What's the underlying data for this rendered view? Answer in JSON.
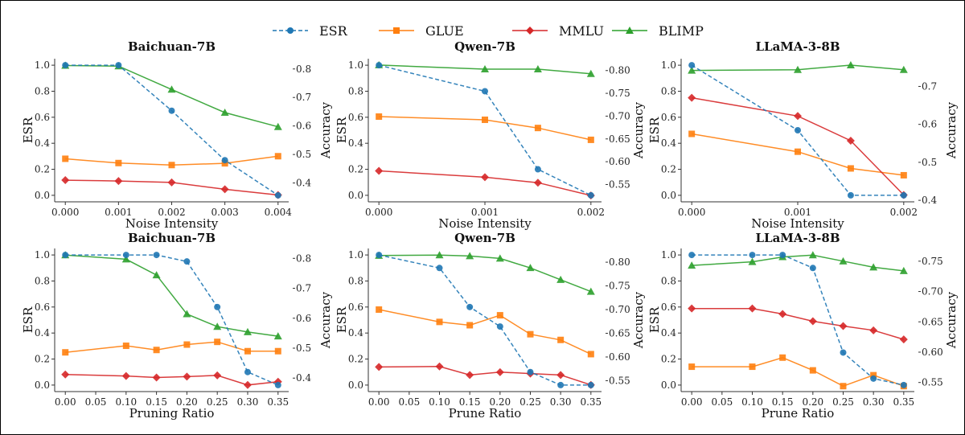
{
  "legend": {
    "placement": "top-center",
    "items": [
      {
        "name": "ESR",
        "color": "#1f77b4",
        "marker": "circle",
        "linestyle": "dashed"
      },
      {
        "name": "GLUE",
        "color": "#ff7f0e",
        "marker": "square",
        "linestyle": "solid"
      },
      {
        "name": "MMLU",
        "color": "#d62728",
        "marker": "diamond",
        "linestyle": "solid"
      },
      {
        "name": "BLIMP",
        "color": "#2ca02c",
        "marker": "triangle",
        "linestyle": "solid"
      }
    ]
  },
  "chart_data": [
    {
      "type": "line",
      "title": "Baichuan-7B",
      "xlabel": "Noise Intensity",
      "ylabel": "ESR",
      "y2label": "Accuracy",
      "x": [
        0.0,
        0.001,
        0.002,
        0.003,
        0.004
      ],
      "xticks": [
        "0.000",
        "0.001",
        "0.002",
        "0.003",
        "0.004"
      ],
      "xlim": [
        -0.0002,
        0.0042
      ],
      "yticks": [
        "0.0",
        "0.2",
        "0.4",
        "0.6",
        "0.8",
        "1.0"
      ],
      "ylim": [
        -0.05,
        1.05
      ],
      "y2ticks": [
        "0.4",
        "0.5",
        "0.6",
        "0.7",
        "0.8"
      ],
      "y2lim": [
        0.334,
        0.836
      ],
      "series": [
        {
          "name": "ESR",
          "axis": "left",
          "values": [
            1.0,
            1.0,
            0.65,
            0.27,
            0.0
          ]
        },
        {
          "name": "GLUE",
          "axis": "right",
          "values": [
            0.485,
            0.47,
            0.463,
            0.469,
            0.494
          ]
        },
        {
          "name": "MMLU",
          "axis": "right",
          "values": [
            0.41,
            0.407,
            0.402,
            0.378,
            0.358
          ]
        },
        {
          "name": "BLIMP",
          "axis": "right",
          "values": [
            0.812,
            0.81,
            0.728,
            0.647,
            0.597
          ]
        }
      ]
    },
    {
      "type": "line",
      "title": "Qwen-7B",
      "xlabel": "Noise Intensity",
      "ylabel": "ESR",
      "y2label": "Accuracy",
      "x": [
        0.0,
        0.001,
        0.0015,
        0.002
      ],
      "xticks": [
        "0.000",
        "0.001",
        "0.002"
      ],
      "xlim": [
        -0.0001,
        0.0021
      ],
      "yticks": [
        "0.0",
        "0.2",
        "0.4",
        "0.6",
        "0.8",
        "1.0"
      ],
      "ylim": [
        -0.05,
        1.05
      ],
      "y2ticks": [
        "0.55",
        "0.60",
        "0.65",
        "0.70",
        "0.75",
        "0.80"
      ],
      "y2lim": [
        0.512,
        0.826
      ],
      "series": [
        {
          "name": "ESR",
          "axis": "left",
          "values": [
            1.0,
            0.8,
            0.2,
            0.0
          ]
        },
        {
          "name": "GLUE",
          "axis": "right",
          "values": [
            0.699,
            0.692,
            0.674,
            0.648
          ]
        },
        {
          "name": "MMLU",
          "axis": "right",
          "values": [
            0.58,
            0.566,
            0.554,
            0.526
          ]
        },
        {
          "name": "BLIMP",
          "axis": "right",
          "values": [
            0.812,
            0.803,
            0.803,
            0.793
          ]
        }
      ]
    },
    {
      "type": "line",
      "title": "LLaMA-3-8B",
      "xlabel": "Noise Intensity",
      "ylabel": "ESR",
      "y2label": "Accuracy",
      "x": [
        0.0,
        0.001,
        0.0015,
        0.002
      ],
      "xticks": [
        "0.000",
        "0.001",
        "0.002"
      ],
      "xlim": [
        -0.0001,
        0.0021
      ],
      "yticks": [
        "0.0",
        "0.2",
        "0.4",
        "0.6",
        "0.8",
        "1.0"
      ],
      "ylim": [
        -0.05,
        1.05
      ],
      "y2ticks": [
        "0.4",
        "0.5",
        "0.6",
        "0.7"
      ],
      "y2lim": [
        0.396,
        0.773
      ],
      "series": [
        {
          "name": "ESR",
          "axis": "left",
          "values": [
            1.0,
            0.5,
            0.0,
            0.0
          ]
        },
        {
          "name": "GLUE",
          "axis": "right",
          "values": [
            0.575,
            0.528,
            0.484,
            0.466
          ]
        },
        {
          "name": "MMLU",
          "axis": "right",
          "values": [
            0.67,
            0.622,
            0.557,
            0.414
          ]
        },
        {
          "name": "BLIMP",
          "axis": "right",
          "values": [
            0.742,
            0.744,
            0.756,
            0.744
          ]
        }
      ]
    },
    {
      "type": "line",
      "title": "Baichuan-7B",
      "xlabel": "Pruning Ratio",
      "ylabel": "ESR",
      "y2label": "Accuracy",
      "x": [
        0.0,
        0.1,
        0.15,
        0.2,
        0.25,
        0.3,
        0.35
      ],
      "xticks": [
        "0.00",
        "0.05",
        "0.10",
        "0.15",
        "0.20",
        "0.25",
        "0.30",
        "0.35"
      ],
      "xlim": [
        -0.0175,
        0.3675
      ],
      "yticks": [
        "0.0",
        "0.2",
        "0.4",
        "0.6",
        "0.8",
        "1.0"
      ],
      "ylim": [
        -0.05,
        1.05
      ],
      "y2ticks": [
        "0.4",
        "0.5",
        "0.6",
        "0.7",
        "0.8"
      ],
      "y2lim": [
        0.355,
        0.833
      ],
      "series": [
        {
          "name": "ESR",
          "axis": "left",
          "values": [
            1.0,
            1.0,
            1.0,
            0.95,
            0.6,
            0.1,
            0.0
          ]
        },
        {
          "name": "GLUE",
          "axis": "right",
          "values": [
            0.486,
            0.508,
            0.494,
            0.512,
            0.521,
            0.49,
            0.49
          ]
        },
        {
          "name": "MMLU",
          "axis": "right",
          "values": [
            0.412,
            0.407,
            0.402,
            0.405,
            0.409,
            0.377,
            0.388
          ]
        },
        {
          "name": "BLIMP",
          "axis": "right",
          "values": [
            0.811,
            0.797,
            0.744,
            0.614,
            0.572,
            0.554,
            0.54
          ]
        }
      ]
    },
    {
      "type": "line",
      "title": "Qwen-7B",
      "xlabel": "Prune Ratio",
      "ylabel": "ESR",
      "y2label": "Accuracy",
      "x": [
        0.0,
        0.1,
        0.15,
        0.2,
        0.25,
        0.3,
        0.35
      ],
      "xticks": [
        "0.00",
        "0.05",
        "0.10",
        "0.15",
        "0.20",
        "0.25",
        "0.30",
        "0.35"
      ],
      "xlim": [
        -0.0175,
        0.3675
      ],
      "yticks": [
        "0.0",
        "0.2",
        "0.4",
        "0.6",
        "0.8",
        "1.0"
      ],
      "ylim": [
        -0.05,
        1.05
      ],
      "y2ticks": [
        "0.55",
        "0.60",
        "0.65",
        "0.70",
        "0.75",
        "0.80"
      ],
      "y2lim": [
        0.527,
        0.829
      ],
      "series": [
        {
          "name": "ESR",
          "axis": "left",
          "values": [
            1.0,
            0.9,
            0.6,
            0.45,
            0.1,
            0.0,
            0.0
          ]
        },
        {
          "name": "GLUE",
          "axis": "right",
          "values": [
            0.7,
            0.674,
            0.667,
            0.688,
            0.648,
            0.636,
            0.606
          ]
        },
        {
          "name": "MMLU",
          "axis": "right",
          "values": [
            0.579,
            0.58,
            0.562,
            0.568,
            0.565,
            0.562,
            0.541
          ]
        },
        {
          "name": "BLIMP",
          "axis": "right",
          "values": [
            0.814,
            0.815,
            0.813,
            0.808,
            0.788,
            0.763,
            0.738
          ]
        }
      ]
    },
    {
      "type": "line",
      "title": "LLaMA-3-8B",
      "xlabel": "Prune Ratio",
      "ylabel": "ESR",
      "y2label": "Accuracy",
      "x": [
        0.0,
        0.1,
        0.15,
        0.2,
        0.25,
        0.3,
        0.35
      ],
      "xticks": [
        "0.00",
        "0.05",
        "0.10",
        "0.15",
        "0.20",
        "0.25",
        "0.30",
        "0.35"
      ],
      "xlim": [
        -0.0175,
        0.3675
      ],
      "yticks": [
        "0.0",
        "0.2",
        "0.4",
        "0.6",
        "0.8",
        "1.0"
      ],
      "ylim": [
        -0.05,
        1.05
      ],
      "y2ticks": [
        "0.55",
        "0.60",
        "0.65",
        "0.70",
        "0.75"
      ],
      "y2lim": [
        0.535,
        0.771
      ],
      "series": [
        {
          "name": "ESR",
          "axis": "left",
          "values": [
            1.0,
            1.0,
            1.0,
            0.9,
            0.25,
            0.05,
            0.0
          ]
        },
        {
          "name": "GLUE",
          "axis": "right",
          "values": [
            0.576,
            0.576,
            0.591,
            0.57,
            0.544,
            0.562,
            0.544
          ]
        },
        {
          "name": "MMLU",
          "axis": "right",
          "values": [
            0.672,
            0.672,
            0.663,
            0.651,
            0.643,
            0.636,
            0.621
          ]
        },
        {
          "name": "BLIMP",
          "axis": "right",
          "values": [
            0.743,
            0.749,
            0.757,
            0.76,
            0.75,
            0.74,
            0.734
          ]
        }
      ]
    }
  ]
}
